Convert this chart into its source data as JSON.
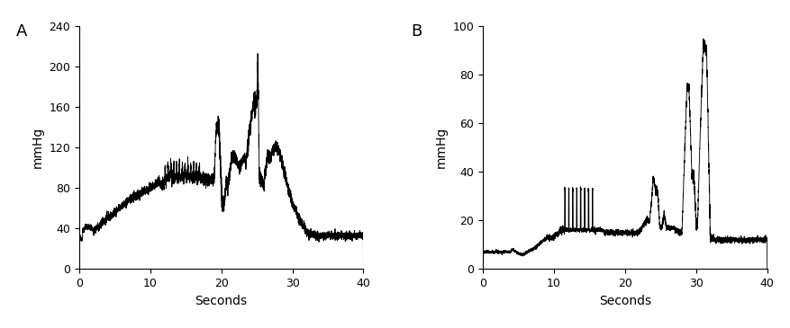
{
  "panel_A_label": "A",
  "panel_B_label": "B",
  "xlabel": "Seconds",
  "ylabel": "mmHg",
  "xlim": [
    0,
    40
  ],
  "A_ylim": [
    0,
    240
  ],
  "B_ylim": [
    0,
    100
  ],
  "A_yticks": [
    0,
    40,
    80,
    120,
    160,
    200,
    240
  ],
  "B_yticks": [
    0,
    20,
    40,
    60,
    80,
    100
  ],
  "xticks": [
    0,
    10,
    20,
    30,
    40
  ],
  "line_color": "#000000",
  "bg_color": "#ffffff",
  "label_fontsize": 10,
  "panel_label_fontsize": 13,
  "tick_fontsize": 9
}
